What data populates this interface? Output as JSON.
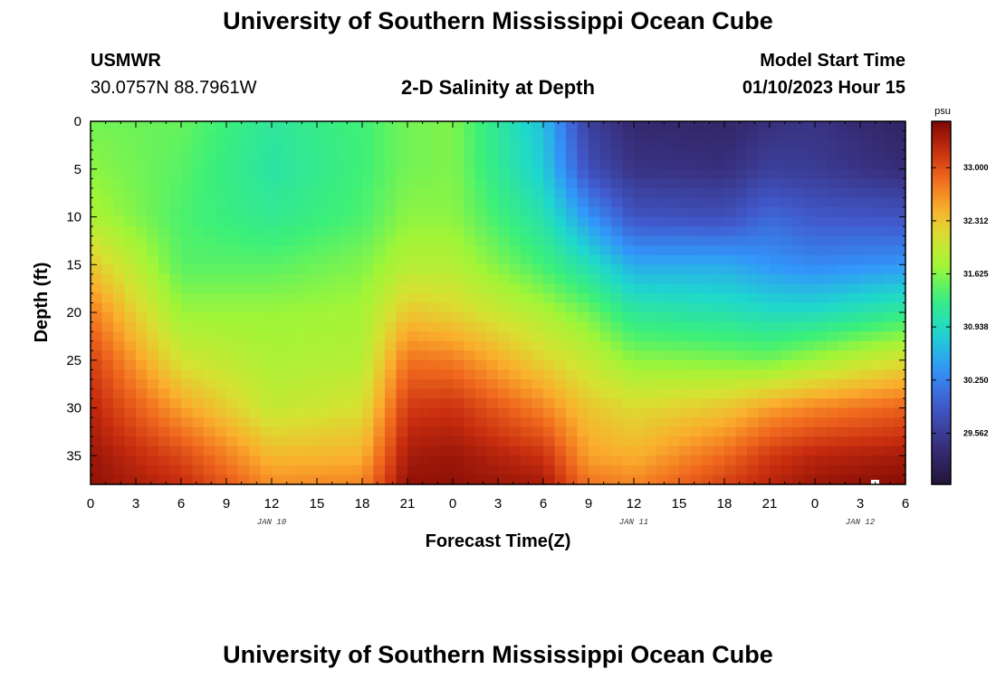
{
  "header": {
    "main_title": "University of Southern Mississippi Ocean Cube",
    "station_name": "USMWR",
    "station_coords": "30.0757N  88.7961W",
    "plot_title": "2-D Salinity at Depth",
    "model_start_label": "Model Start Time",
    "model_start_value": "01/10/2023 Hour 15"
  },
  "footer": {
    "title": "University of Southern Mississippi Ocean Cube"
  },
  "chart_data": {
    "type": "heatmap",
    "title": "2-D Salinity at Depth",
    "xlabel": "Forecast Time(Z)",
    "ylabel": "Depth (ft)",
    "x_tick_labels": [
      "0",
      "3",
      "6",
      "9",
      "12",
      "15",
      "18",
      "21",
      "0",
      "3",
      "6",
      "9",
      "12",
      "15",
      "18",
      "21",
      "0",
      "3",
      "6"
    ],
    "x_hours_elapsed": [
      0,
      3,
      6,
      9,
      12,
      15,
      18,
      21,
      24,
      27,
      30,
      33,
      36,
      39,
      42,
      45,
      48,
      51,
      54
    ],
    "date_labels": [
      {
        "text": "JAN 10",
        "hour": 12
      },
      {
        "text": "JAN 11",
        "hour": 36
      },
      {
        "text": "JAN 12",
        "hour": 51
      }
    ],
    "y_ticks": [
      0,
      5,
      10,
      15,
      20,
      25,
      30,
      35
    ],
    "ylim": [
      38,
      0
    ],
    "xlim": [
      0,
      54
    ],
    "colorbar": {
      "unit": "psu",
      "ticks": [
        "33.000",
        "32.312",
        "31.625",
        "30.938",
        "30.250",
        "29.562"
      ],
      "tick_values": [
        33.0,
        32.312,
        31.625,
        30.938,
        30.25,
        29.562
      ],
      "range": [
        28.9,
        33.6
      ]
    },
    "grid": false,
    "salinity_profiles": {
      "depths": [
        0,
        5,
        10,
        15,
        20,
        25,
        30,
        35,
        38
      ],
      "hours": [
        0,
        6,
        12,
        18,
        21,
        24,
        30,
        33,
        36,
        42,
        45,
        48,
        54
      ],
      "values": [
        [
          31.55,
          31.65,
          31.8,
          32.3,
          32.75,
          33.1,
          33.3,
          33.45,
          33.5
        ],
        [
          31.5,
          31.45,
          31.4,
          31.45,
          31.7,
          32.05,
          32.55,
          33.05,
          33.25
        ],
        [
          31.15,
          31.1,
          31.2,
          31.45,
          31.7,
          31.8,
          31.95,
          32.4,
          32.65
        ],
        [
          31.35,
          31.35,
          31.4,
          31.6,
          31.75,
          31.85,
          32.1,
          32.45,
          32.7
        ],
        [
          31.55,
          31.55,
          31.65,
          31.85,
          32.3,
          32.8,
          33.15,
          33.4,
          33.5
        ],
        [
          31.6,
          31.6,
          31.65,
          31.85,
          32.2,
          32.75,
          33.2,
          33.45,
          33.5
        ],
        [
          30.7,
          30.8,
          31.05,
          31.35,
          31.8,
          32.2,
          32.7,
          33.2,
          33.4
        ],
        [
          29.6,
          29.8,
          30.4,
          31.0,
          31.55,
          31.95,
          32.3,
          32.55,
          32.8
        ],
        [
          29.3,
          29.45,
          29.85,
          30.55,
          31.15,
          31.65,
          32.15,
          32.45,
          32.7
        ],
        [
          29.25,
          29.4,
          29.8,
          30.55,
          31.05,
          31.6,
          32.3,
          32.85,
          33.1
        ],
        [
          29.4,
          29.6,
          30.05,
          30.4,
          30.95,
          31.55,
          32.55,
          33.15,
          33.3
        ],
        [
          29.45,
          29.55,
          29.9,
          30.3,
          30.95,
          31.75,
          32.7,
          33.3,
          33.45
        ],
        [
          29.2,
          29.35,
          29.85,
          30.4,
          31.2,
          32.1,
          32.9,
          33.4,
          33.55
        ]
      ]
    }
  }
}
